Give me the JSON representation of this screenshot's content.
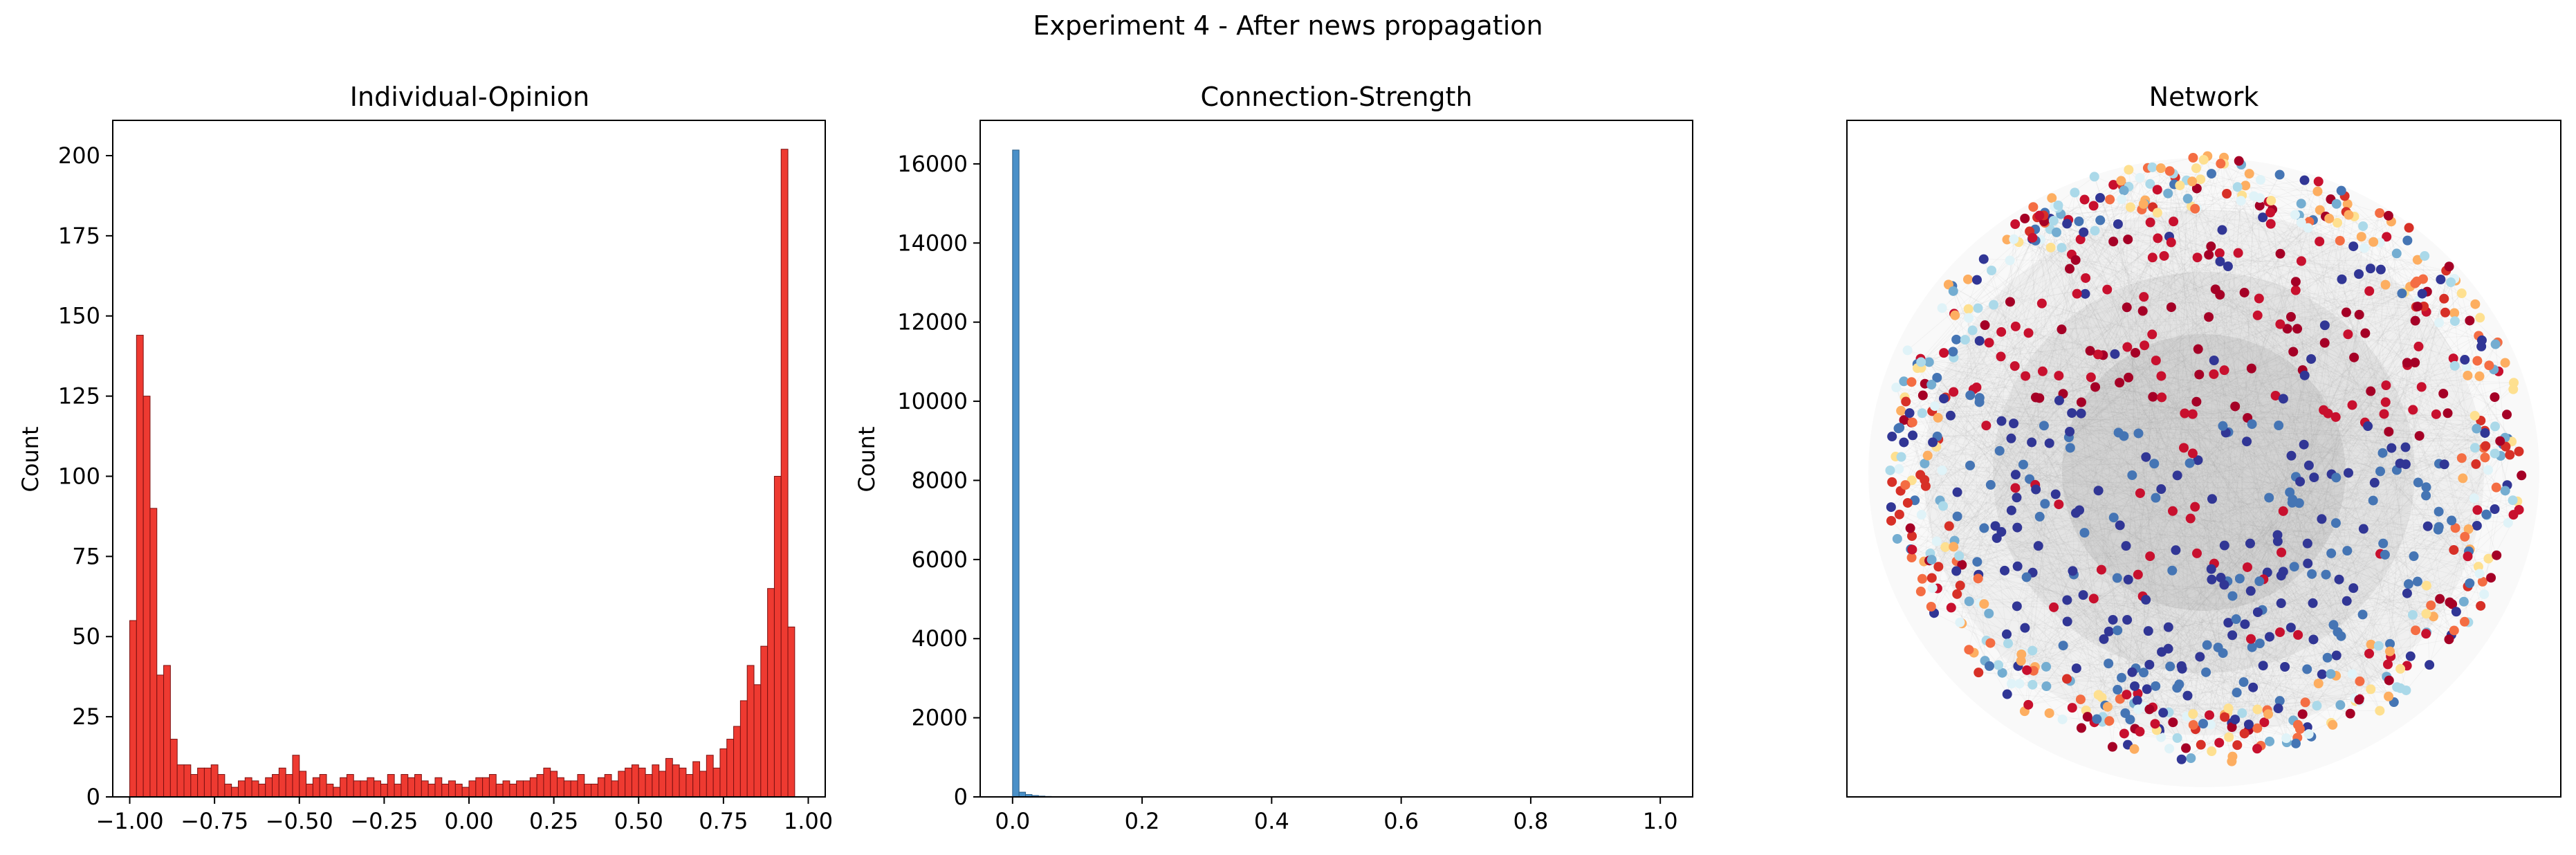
{
  "figure": {
    "suptitle": "Experiment 4 - After news propagation"
  },
  "chart_data": [
    {
      "type": "bar",
      "title": "Individual-Opinion",
      "xlabel": "",
      "ylabel": "Count",
      "xlim": [
        -1.05,
        1.05
      ],
      "ylim": [
        0,
        211
      ],
      "grid": false,
      "bin_width": 0.02,
      "bar_color": "#ee3a31",
      "edge_color": "#7a1010",
      "xticks": [
        -1.0,
        -0.75,
        -0.5,
        -0.25,
        0.0,
        0.25,
        0.5,
        0.75,
        1.0
      ],
      "xtick_labels": [
        "−1.00",
        "−0.75",
        "−0.50",
        "−0.25",
        "0.00",
        "0.25",
        "0.50",
        "0.75",
        "1.00"
      ],
      "yticks": [
        0,
        25,
        50,
        75,
        100,
        125,
        150,
        175,
        200
      ],
      "ytick_labels": [
        "0",
        "25",
        "50",
        "75",
        "100",
        "125",
        "150",
        "175",
        "200"
      ],
      "bin_edges_start": -1.0,
      "values": [
        55,
        144,
        125,
        90,
        38,
        41,
        18,
        10,
        10,
        7,
        9,
        9,
        10,
        7,
        4,
        3,
        5,
        6,
        5,
        4,
        6,
        7,
        9,
        7,
        13,
        8,
        4,
        6,
        7,
        4,
        3,
        6,
        7,
        5,
        5,
        6,
        5,
        4,
        7,
        4,
        7,
        6,
        7,
        5,
        4,
        6,
        4,
        5,
        4,
        3,
        5,
        6,
        6,
        7,
        4,
        5,
        4,
        5,
        5,
        6,
        7,
        9,
        8,
        6,
        5,
        5,
        7,
        4,
        4,
        6,
        7,
        5,
        8,
        9,
        10,
        9,
        7,
        10,
        8,
        12,
        10,
        9,
        7,
        11,
        8,
        13,
        9,
        15,
        18,
        22,
        30,
        41,
        35,
        47,
        65,
        100,
        202,
        53
      ]
    },
    {
      "type": "bar",
      "title": "Connection-Strength",
      "xlabel": "",
      "ylabel": "Count",
      "xlim": [
        -0.05,
        1.05
      ],
      "ylim": [
        0,
        17100
      ],
      "grid": false,
      "bin_width": 0.01,
      "bar_color": "#4a90c8",
      "edge_color": "#2b5f88",
      "xticks": [
        0.0,
        0.2,
        0.4,
        0.6,
        0.8,
        1.0
      ],
      "xtick_labels": [
        "0.0",
        "0.2",
        "0.4",
        "0.6",
        "0.8",
        "1.0"
      ],
      "yticks": [
        0,
        2000,
        4000,
        6000,
        8000,
        10000,
        12000,
        14000,
        16000
      ],
      "ytick_labels": [
        "0",
        "2000",
        "4000",
        "6000",
        "8000",
        "10000",
        "12000",
        "14000",
        "16000"
      ],
      "bin_edges_start": 0.0,
      "values": [
        16350,
        120,
        60,
        35,
        20,
        12,
        8,
        5,
        3
      ]
    },
    {
      "type": "network",
      "title": "Network",
      "node_count": 1000,
      "edge_color": "#9a9a9a",
      "palette": [
        "#a50026",
        "#c8102e",
        "#d73027",
        "#f46d43",
        "#fdae61",
        "#fee090",
        "#e0f3f8",
        "#abd9e9",
        "#74add1",
        "#4575b4",
        "#313695"
      ]
    }
  ]
}
